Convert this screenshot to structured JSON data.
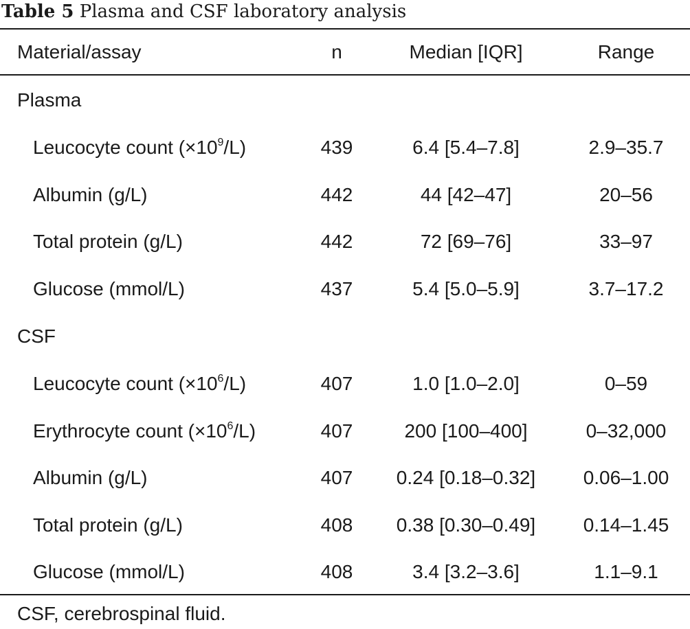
{
  "caption": {
    "label": "Table 5",
    "title": "Plasma and CSF laboratory analysis"
  },
  "header": {
    "name": "Material/assay",
    "n": "n",
    "median": "Median [IQR]",
    "range": "Range"
  },
  "groups": [
    {
      "name": "Plasma",
      "rows": [
        {
          "name_pre": "Leucocyte count (×10",
          "sup": "9",
          "name_post": "/L)",
          "n": "439",
          "median": "6.4 [5.4–7.8]",
          "range": "2.9–35.7"
        },
        {
          "name_pre": "Albumin (g/L)",
          "sup": "",
          "name_post": "",
          "n": "442",
          "median": "44 [42–47]",
          "range": "20–56"
        },
        {
          "name_pre": "Total protein (g/L)",
          "sup": "",
          "name_post": "",
          "n": "442",
          "median": "72 [69–76]",
          "range": "33–97"
        },
        {
          "name_pre": "Glucose (mmol/L)",
          "sup": "",
          "name_post": "",
          "n": "437",
          "median": "5.4 [5.0–5.9]",
          "range": "3.7–17.2"
        }
      ]
    },
    {
      "name": "CSF",
      "rows": [
        {
          "name_pre": "Leucocyte count (×10",
          "sup": "6",
          "name_post": "/L)",
          "n": "407",
          "median": "1.0 [1.0–2.0]",
          "range": "0–59"
        },
        {
          "name_pre": "Erythrocyte count (×10",
          "sup": "6",
          "name_post": "/L)",
          "n": "407",
          "median": "200 [100–400]",
          "range": "0–32,000"
        },
        {
          "name_pre": "Albumin (g/L)",
          "sup": "",
          "name_post": "",
          "n": "407",
          "median": "0.24 [0.18–0.32]",
          "range": "0.06–1.00"
        },
        {
          "name_pre": "Total protein (g/L)",
          "sup": "",
          "name_post": "",
          "n": "408",
          "median": "0.38 [0.30–0.49]",
          "range": "0.14–1.45"
        },
        {
          "name_pre": "Glucose (mmol/L)",
          "sup": "",
          "name_post": "",
          "n": "408",
          "median": "3.4 [3.2–3.6]",
          "range": "1.1–9.1"
        }
      ]
    }
  ],
  "footnote": "CSF, cerebrospinal fluid."
}
